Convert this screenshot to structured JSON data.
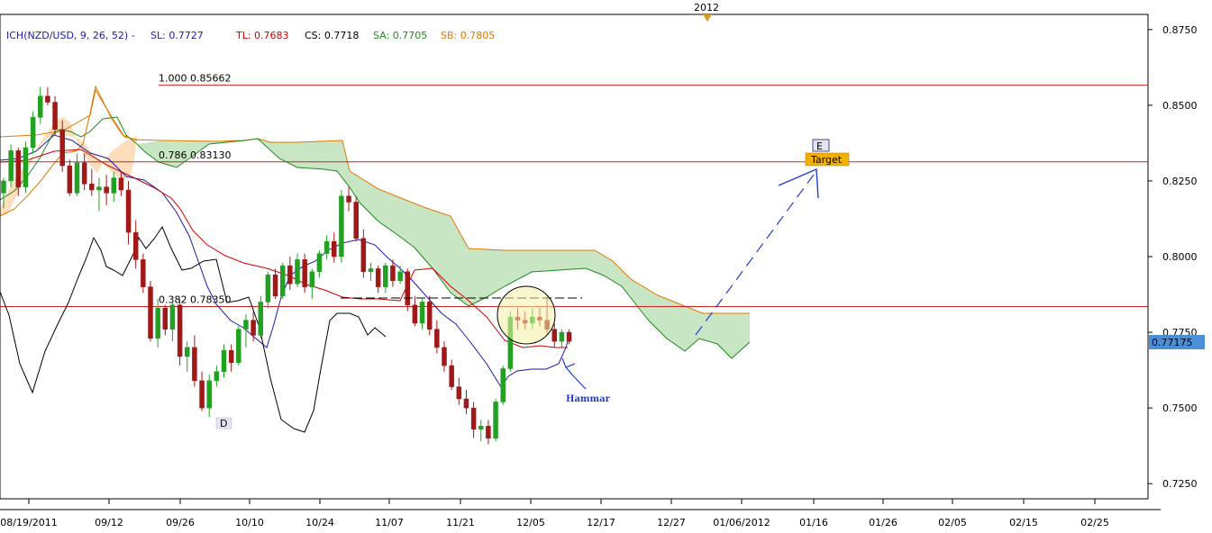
{
  "chart_data": {
    "type": "candlestick",
    "symbol": "NZD/USD",
    "indicator": {
      "prefix": "ICH(NZD/USD, 9, 26, 52) -",
      "items": [
        {
          "label": "SL: 0.7727",
          "color": "#1a1aa6"
        },
        {
          "label": "TL: 0.7683",
          "color": "#cc0000"
        },
        {
          "label": "CS: 0.7718",
          "color": "#000000"
        },
        {
          "label": "SA: 0.7705",
          "color": "#1f8a1f"
        },
        {
          "label": "SB: 0.7805",
          "color": "#e07800"
        }
      ]
    },
    "year_marker": "2012",
    "ylim": [
      0.72,
      0.88
    ],
    "y_ticks": [
      "0.7250",
      "0.7500",
      "0.7750",
      "0.8000",
      "0.8250",
      "0.8500",
      "0.8750"
    ],
    "x_ticks": [
      "08/19/2011",
      "09/12",
      "09/26",
      "10/10",
      "10/24",
      "11/07",
      "11/21",
      "12/05",
      "12/17",
      "12/27",
      "01/06/2012",
      "01/16",
      "01/26",
      "02/05",
      "02/15",
      "02/25"
    ],
    "current_price": "0.77175",
    "fib_levels": [
      {
        "label": "1.000 0.85662",
        "value": 0.85662
      },
      {
        "label": "0.786 0.83130",
        "value": 0.8313
      },
      {
        "label": "0.382 0.78350",
        "value": 0.7835
      }
    ],
    "annotations": {
      "point_d": "D",
      "point_e": "E",
      "target": "Target",
      "hammer": "Hammar"
    },
    "candles": [
      [
        0.821,
        0.826,
        0.816,
        0.825
      ],
      [
        0.825,
        0.837,
        0.823,
        0.835
      ],
      [
        0.835,
        0.836,
        0.82,
        0.823
      ],
      [
        0.823,
        0.838,
        0.821,
        0.836
      ],
      [
        0.836,
        0.848,
        0.834,
        0.846
      ],
      [
        0.846,
        0.856,
        0.844,
        0.853
      ],
      [
        0.853,
        0.856,
        0.85,
        0.851
      ],
      [
        0.851,
        0.853,
        0.84,
        0.842
      ],
      [
        0.842,
        0.845,
        0.828,
        0.83
      ],
      [
        0.83,
        0.832,
        0.82,
        0.821
      ],
      [
        0.821,
        0.834,
        0.82,
        0.831
      ],
      [
        0.831,
        0.834,
        0.822,
        0.824
      ],
      [
        0.824,
        0.829,
        0.82,
        0.822
      ],
      [
        0.822,
        0.826,
        0.815,
        0.823
      ],
      [
        0.823,
        0.827,
        0.817,
        0.821
      ],
      [
        0.821,
        0.828,
        0.818,
        0.826
      ],
      [
        0.826,
        0.828,
        0.82,
        0.822
      ],
      [
        0.822,
        0.825,
        0.804,
        0.808
      ],
      [
        0.808,
        0.812,
        0.796,
        0.799
      ],
      [
        0.799,
        0.801,
        0.788,
        0.79
      ],
      [
        0.79,
        0.792,
        0.772,
        0.773
      ],
      [
        0.773,
        0.786,
        0.77,
        0.783
      ],
      [
        0.783,
        0.784,
        0.774,
        0.776
      ],
      [
        0.776,
        0.785,
        0.772,
        0.784
      ],
      [
        0.784,
        0.786,
        0.764,
        0.767
      ],
      [
        0.767,
        0.772,
        0.762,
        0.77
      ],
      [
        0.77,
        0.774,
        0.757,
        0.759
      ],
      [
        0.759,
        0.762,
        0.749,
        0.75
      ],
      [
        0.75,
        0.761,
        0.747,
        0.759
      ],
      [
        0.759,
        0.764,
        0.757,
        0.762
      ],
      [
        0.762,
        0.771,
        0.76,
        0.769
      ],
      [
        0.769,
        0.771,
        0.762,
        0.765
      ],
      [
        0.765,
        0.777,
        0.764,
        0.776
      ],
      [
        0.776,
        0.781,
        0.77,
        0.779
      ],
      [
        0.779,
        0.782,
        0.772,
        0.774
      ],
      [
        0.774,
        0.787,
        0.773,
        0.785
      ],
      [
        0.785,
        0.795,
        0.783,
        0.794
      ],
      [
        0.794,
        0.796,
        0.786,
        0.787
      ],
      [
        0.787,
        0.798,
        0.786,
        0.797
      ],
      [
        0.797,
        0.8,
        0.789,
        0.791
      ],
      [
        0.791,
        0.801,
        0.79,
        0.799
      ],
      [
        0.799,
        0.801,
        0.788,
        0.79
      ],
      [
        0.79,
        0.796,
        0.786,
        0.795
      ],
      [
        0.795,
        0.802,
        0.793,
        0.801
      ],
      [
        0.801,
        0.807,
        0.799,
        0.805
      ],
      [
        0.805,
        0.808,
        0.798,
        0.8
      ],
      [
        0.8,
        0.822,
        0.798,
        0.82
      ],
      [
        0.82,
        0.823,
        0.815,
        0.818
      ],
      [
        0.818,
        0.82,
        0.805,
        0.806
      ],
      [
        0.806,
        0.809,
        0.793,
        0.795
      ],
      [
        0.795,
        0.798,
        0.792,
        0.796
      ],
      [
        0.796,
        0.797,
        0.788,
        0.79
      ],
      [
        0.79,
        0.798,
        0.788,
        0.797
      ],
      [
        0.797,
        0.799,
        0.79,
        0.792
      ],
      [
        0.792,
        0.797,
        0.791,
        0.795
      ],
      [
        0.795,
        0.796,
        0.782,
        0.784
      ],
      [
        0.784,
        0.787,
        0.777,
        0.778
      ],
      [
        0.778,
        0.786,
        0.776,
        0.785
      ],
      [
        0.785,
        0.787,
        0.774,
        0.776
      ],
      [
        0.776,
        0.779,
        0.768,
        0.77
      ],
      [
        0.77,
        0.772,
        0.762,
        0.764
      ],
      [
        0.764,
        0.766,
        0.756,
        0.757
      ],
      [
        0.757,
        0.76,
        0.751,
        0.753
      ],
      [
        0.753,
        0.756,
        0.748,
        0.75
      ],
      [
        0.75,
        0.752,
        0.74,
        0.743
      ],
      [
        0.743,
        0.746,
        0.739,
        0.744
      ],
      [
        0.744,
        0.746,
        0.738,
        0.74
      ],
      [
        0.74,
        0.753,
        0.739,
        0.752
      ],
      [
        0.752,
        0.764,
        0.751,
        0.763
      ],
      [
        0.763,
        0.782,
        0.762,
        0.78
      ],
      [
        0.78,
        0.783,
        0.776,
        0.779
      ],
      [
        0.779,
        0.782,
        0.776,
        0.778
      ],
      [
        0.778,
        0.783,
        0.776,
        0.78
      ],
      [
        0.78,
        0.783,
        0.777,
        0.779
      ],
      [
        0.779,
        0.787,
        0.774,
        0.776
      ],
      [
        0.776,
        0.778,
        0.77,
        0.772
      ],
      [
        0.772,
        0.776,
        0.77,
        0.775
      ],
      [
        0.775,
        0.776,
        0.771,
        0.772
      ]
    ]
  }
}
